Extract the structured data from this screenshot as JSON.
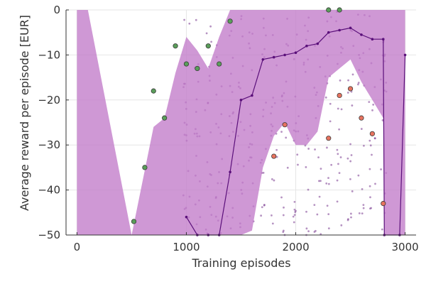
{
  "chart_data": {
    "type": "line",
    "xlabel": "Training episodes",
    "ylabel": "Average reward per episode [EUR]",
    "xlim": [
      -100,
      3100
    ],
    "ylim": [
      -50,
      0
    ],
    "x_ticks": [
      0,
      1000,
      2000,
      3000
    ],
    "y_ticks": [
      0,
      -10,
      -20,
      -30,
      -40,
      -50
    ],
    "grid": true,
    "colors": {
      "band": "#c27bc9",
      "line": "#5a0f7a",
      "scatter": "#7a3a8f",
      "green_marker": "#5a9e5a",
      "red_marker": "#e8735f"
    },
    "band": {
      "x": [
        0,
        0,
        100,
        100,
        500,
        700,
        800,
        900,
        1000,
        1100,
        1200,
        1300,
        1400,
        1500,
        1600,
        1700,
        1800,
        1900,
        2000,
        2100,
        2200,
        2300,
        2400,
        2500,
        2600,
        2700,
        2800,
        2810,
        2900,
        3000,
        3000
      ],
      "upper": [
        0,
        0,
        0,
        0,
        -50,
        -26,
        -24,
        -14,
        -6,
        -9,
        -13,
        -6,
        0,
        0,
        0,
        0,
        0,
        0,
        0,
        0,
        0,
        0,
        0,
        0,
        0,
        0,
        0,
        0,
        0,
        0,
        0
      ],
      "lower": [
        -50,
        -50,
        -50,
        -50,
        -50,
        -50,
        -50,
        -50,
        -50,
        -50,
        -50,
        -50,
        -50,
        -50,
        -49,
        -35,
        -28,
        -25,
        -30,
        -30,
        -27,
        -15,
        -13,
        -11,
        -16,
        -20,
        -24,
        -50,
        -50,
        -50,
        -10
      ]
    },
    "series": [
      {
        "x": [
          1000,
          1100,
          1200,
          1300,
          1400,
          1500,
          1600,
          1700,
          1800,
          1900,
          2000,
          2100,
          2200,
          2300,
          2400,
          2500,
          2600,
          2700,
          2800,
          2810,
          2950,
          3000
        ],
        "values": [
          -46,
          -50,
          -50,
          -50,
          -36,
          -20,
          -19,
          -11,
          -10.5,
          -10,
          -9.5,
          -8,
          -7.5,
          -5,
          -4.5,
          -4,
          -5.5,
          -6.5,
          -6.5,
          -50,
          -50,
          -10
        ]
      }
    ],
    "green_markers": {
      "x": [
        520,
        620,
        700,
        800,
        900,
        1000,
        1100,
        1200,
        1300,
        1400,
        2300,
        2400
      ],
      "y": [
        -47,
        -35,
        -18,
        -24,
        -8,
        -12,
        -13,
        -8,
        -12,
        -2.5,
        0,
        0
      ]
    },
    "red_markers": {
      "x": [
        1800,
        1900,
        2300,
        2400,
        2500,
        2600,
        2700,
        2800
      ],
      "y": [
        -32.5,
        -25.5,
        -28.5,
        -19,
        -17.5,
        -24,
        -27.5,
        -43
      ]
    }
  }
}
